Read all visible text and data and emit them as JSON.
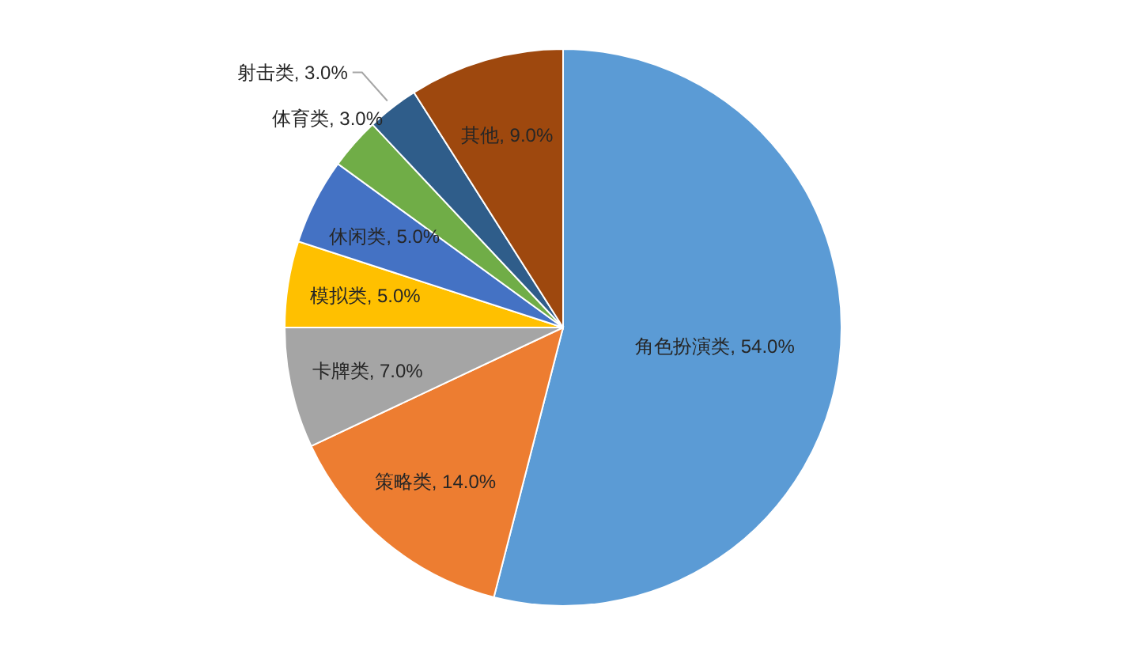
{
  "chart_data": {
    "type": "pie",
    "categories": [
      "角色扮演类",
      "策略类",
      "卡牌类",
      "模拟类",
      "休闲类",
      "体育类",
      "射击类",
      "其他"
    ],
    "values": [
      54.0,
      14.0,
      7.0,
      5.0,
      5.0,
      3.0,
      3.0,
      9.0
    ],
    "value_labels": [
      ", 54.0%",
      ", 14.0%",
      ", 7.0%",
      ", 5.0%",
      ", 5.0%",
      ", 3.0%",
      ", 3.0%",
      ", 9.0%"
    ],
    "colors": [
      "#5b9bd5",
      "#ed7d31",
      "#a5a5a5",
      "#ffc000",
      "#4472c4",
      "#70ad47",
      "#2f5d8a",
      "#9e480e"
    ]
  }
}
